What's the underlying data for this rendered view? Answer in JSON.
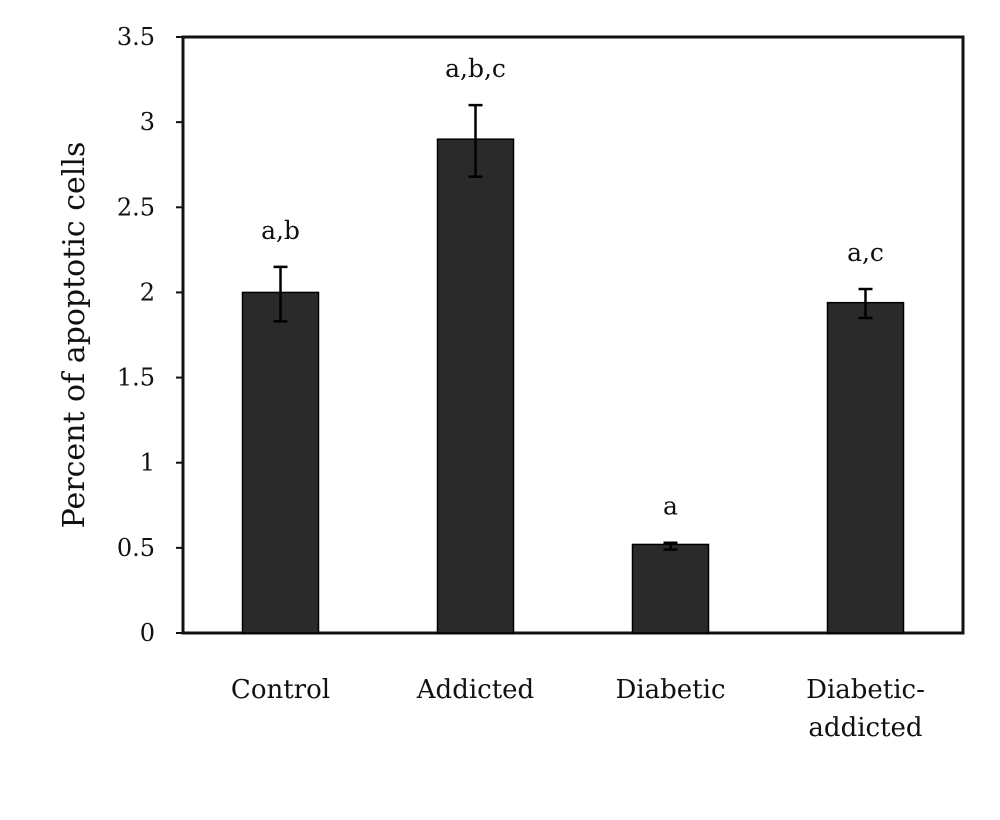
{
  "chart_data": {
    "type": "bar",
    "title": "",
    "xlabel": "",
    "ylabel": "Percent of apoptotic cells",
    "ylim": [
      0,
      3.5
    ],
    "yticks": [
      "0",
      "0.5",
      "1",
      "1.5",
      "2",
      "2.5",
      "3",
      "3.5"
    ],
    "categories": [
      [
        "Control"
      ],
      [
        "Addicted"
      ],
      [
        "Diabetic"
      ],
      [
        "Diabetic-",
        "addicted"
      ]
    ],
    "values": [
      2.0,
      2.9,
      0.52,
      1.94
    ],
    "error_high": [
      2.15,
      3.1,
      0.53,
      2.02
    ],
    "error_low": [
      1.83,
      2.68,
      0.49,
      1.85
    ],
    "significance_labels": [
      "a,b",
      "a,b,c",
      "a",
      "a,c"
    ],
    "grid": false,
    "legend": "none",
    "bar_color": "#2a2a2a"
  }
}
